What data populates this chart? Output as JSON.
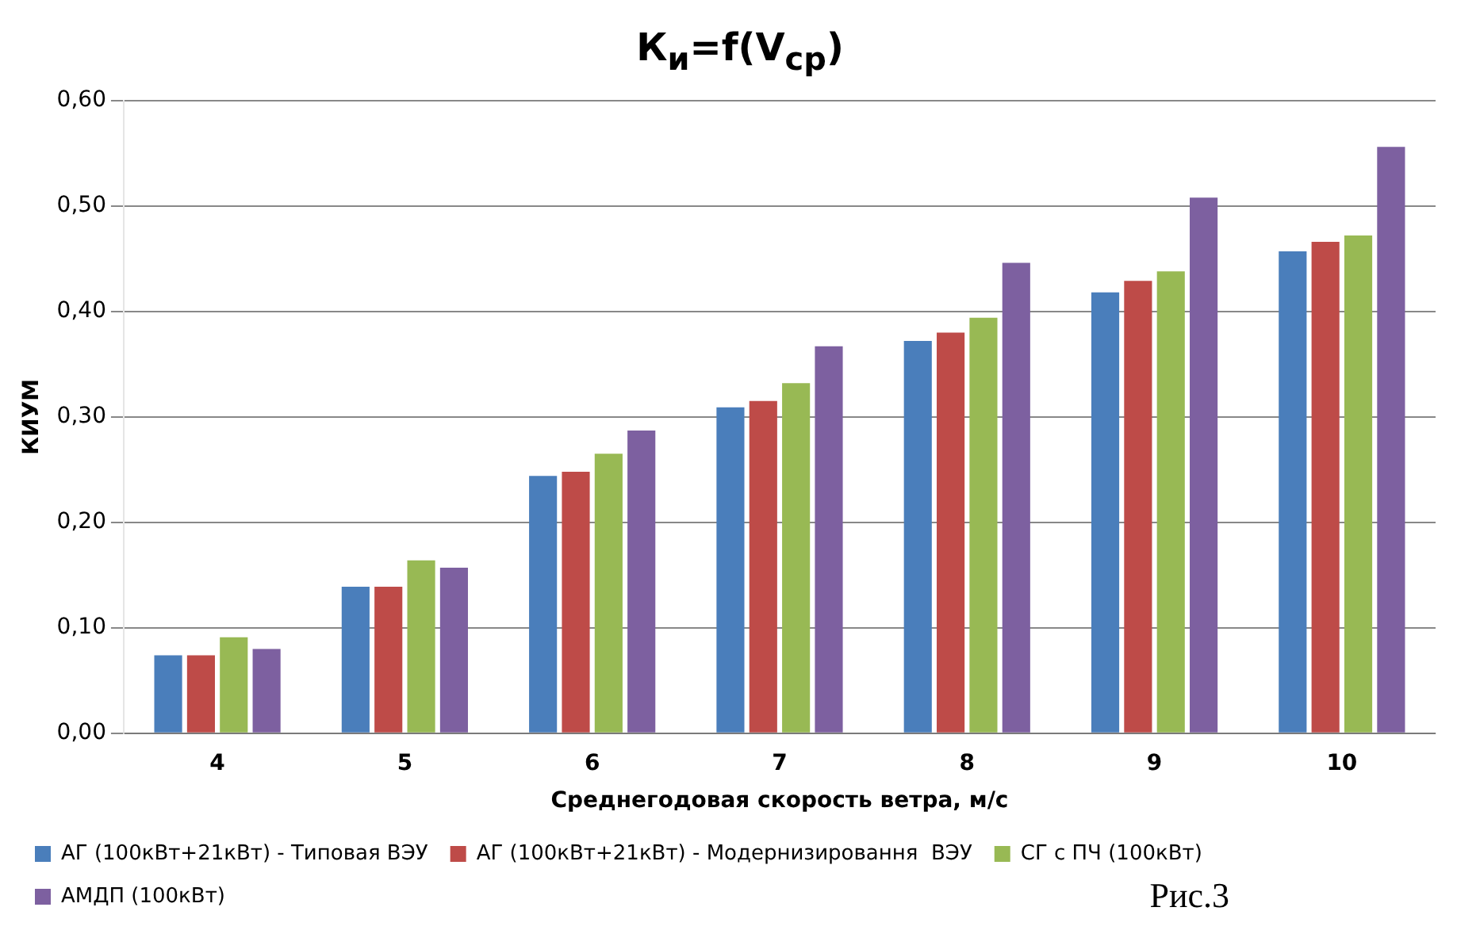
{
  "chart_data": {
    "type": "bar",
    "title": "К$_{и}$=f(V$_{ср}$)",
    "xlabel": "Среднегодовая скорость ветра, м/с",
    "ylabel": "КИУМ",
    "categories": [
      "4",
      "5",
      "6",
      "7",
      "8",
      "9",
      "10"
    ],
    "series": [
      {
        "name": "АГ (100кВт+21кВт) - Типовая ВЭУ",
        "color": "#4a7ebb",
        "values": [
          0.074,
          0.139,
          0.244,
          0.309,
          0.372,
          0.418,
          0.457
        ]
      },
      {
        "name": "АГ (100кВт+21кВт) - Модернизировання  ВЭУ",
        "color": "#be4b48",
        "values": [
          0.074,
          0.139,
          0.248,
          0.315,
          0.38,
          0.429,
          0.466
        ]
      },
      {
        "name": "СГ с ПЧ (100кВт)",
        "color": "#98b954",
        "values": [
          0.091,
          0.164,
          0.265,
          0.332,
          0.394,
          0.438,
          0.472
        ]
      },
      {
        "name": "АМДП (100кВт)",
        "color": "#7d60a0",
        "values": [
          0.08,
          0.157,
          0.287,
          0.367,
          0.446,
          0.508,
          0.556
        ]
      }
    ],
    "ylim": [
      0,
      0.6
    ],
    "yticks": [
      {
        "value": 0,
        "label": "0,00"
      },
      {
        "value": 0.1,
        "label": "0,10"
      },
      {
        "value": 0.2,
        "label": "0,20"
      },
      {
        "value": 0.3,
        "label": "0,30"
      },
      {
        "value": 0.4,
        "label": "0,40"
      },
      {
        "value": 0.5,
        "label": "0,50"
      },
      {
        "value": 0.6,
        "label": "0,60"
      }
    ],
    "grid": "y",
    "legend": "bottom",
    "annotations": [
      "Рис.3"
    ]
  }
}
